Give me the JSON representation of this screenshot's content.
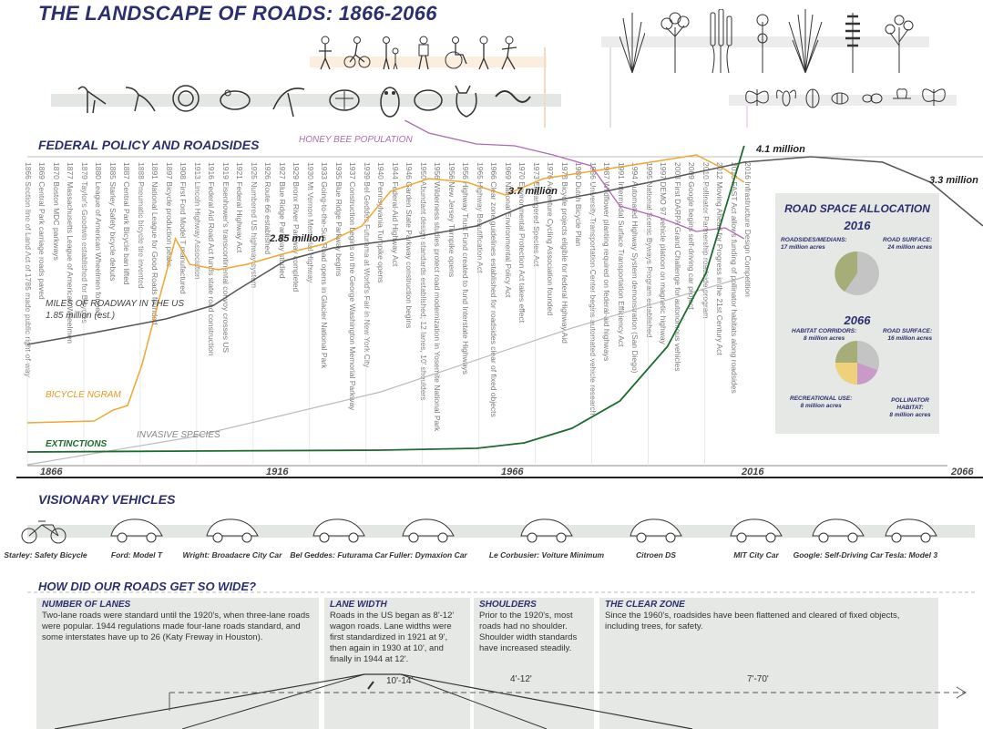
{
  "title": "THE LANDSCAPE OF ROADS: 1866-2066",
  "sections": {
    "federal_policy": "FEDERAL POLICY AND ROADSIDES",
    "visionary_vehicles": "VISIONARY VEHICLES",
    "roads_wide": "HOW DID OUR ROADS GET SO WIDE?"
  },
  "timeline": {
    "years": [
      "1866",
      "1916",
      "1966",
      "2016",
      "2066"
    ],
    "series": {
      "roadway": {
        "name": "MILES OF ROADWAY IN THE US",
        "color": "#555555"
      },
      "bicycle": {
        "name": "BICYCLE NGRAM",
        "color": "#f0a830"
      },
      "bees": {
        "name": "HONEY BEE POPULATION",
        "color": "#b06ab5"
      },
      "invasive": {
        "name": "INVASIVE SPECIES",
        "color": "#bbbbbb"
      },
      "extinctions": {
        "name": "EXTINCTIONS",
        "color": "#1e6b2e"
      }
    },
    "annotations": {
      "r1": "1.85 million (est.)",
      "r2": "2.85 million",
      "r3": "3.7 million",
      "r4": "4.1 million",
      "r5": "3.3 million"
    }
  },
  "policies": [
    "1866 Section line of Land Act of 1785 made public right-of-way",
    "1869 Central Park carriage roads paved",
    "1870 Boston MDC parkways",
    "1877 Massachusetts League of American Wheelmen",
    "1879 Taylor's Goodwin established for Bicycles",
    "1880 League of American Wheelmen formed",
    "1885 Starley Safety bicycle debuts",
    "1887 Central Park Bicycle ban lifted",
    "1888 Pneumatic bicycle tire invented",
    "1891 National League for Good Roads founded",
    "1897 Bicycle production peaks",
    "1908 First Ford Model T manufactured",
    "1913 Lincoln Highway Association",
    "1916 Federal Aid Road Act funds state road construction",
    "1919 Eisenhower's transcontinental convoy crosses US",
    "1921 Federal Highway Act",
    "1925 Numbered US highway system",
    "1926 Route 66 established",
    "1927 Blue Ridge Parkway studied",
    "1929 Bronx River Parkway completed",
    "1930 Mt Vernon Memorial Highway",
    "1933 Going-to-the-Sun Road opens in Glacier National Park",
    "1935 Blue Ridge Parkway begins",
    "1937 Construction begins on the George Washington Memorial Parkway",
    "1939 Bel Geddes Futurama at World's Fair in New York City",
    "1940 Pennsylvania Turnpike opens",
    "1944 Federal-Aid Highway Act",
    "1946 Garden State Parkway construction begins",
    "1950 Abundant design standards established; 12 lanes, 10' shoulders",
    "1956 Wilderness studies protect road modernization in Yosemite National Park",
    "1956 New Jersey Turnpike opens",
    "1956 Highway Trust Fund created to fund Interstate Highways",
    "1965 Highway Beautification Act",
    "1966 Clear zone guidelines established for roadsides clear of fixed objects",
    "1969 National Environmental Policy Act",
    "1970 Environmental Protection Act takes effect",
    "1973 Endangered Species Act",
    "1976 Adventure Cycling Association founded",
    "1978 Bicycle projects eligible for federal Highway Aid",
    "1980 Dutch Bicycle Plan",
    "1986 University Transportation Center begins automated vehicle research",
    "1987 Wildflower planting required on federal-aid highways",
    "1991 Intermodal Surface Transportation Efficiency Act",
    "1994 Automated Highway System demonstration (San Diego)",
    "1995 National Scenic Byways Program established",
    "1997 DEMO 97 vehicle platoon on magnetic highway",
    "2003 First DARPA Grand Challenge for autonomous vehicles",
    "2009 Google begins self-driving car project",
    "2010 Pollinator Partnership roadside program",
    "2012 Moving Ahead for Progress in the 21st Century Act",
    "2015 FAST Act allows funding of pollinator habitats along roadsides",
    "2016 Infrastructure Design Competition"
  ],
  "allocation": {
    "title": "ROAD SPACE ALLOCATION",
    "y2016": {
      "year": "2016",
      "labels": {
        "a": "ROADSIDES/MEDIANS:",
        "a2": "17 million acres",
        "b": "ROAD SURFACE:",
        "b2": "24 million acres"
      }
    },
    "y2066": {
      "year": "2066",
      "labels": {
        "a": "HABITAT CORRIDORS:",
        "a2": "8 million acres",
        "b": "ROAD SURFACE:",
        "b2": "16 million acres",
        "c": "RECREATIONAL USE:",
        "c2": "8 million acres",
        "d": "POLLINATOR HABITAT:",
        "d2": "8 million acres"
      }
    },
    "colors": {
      "roadside": "#a6ad79",
      "surface": "#c4c4c4",
      "rec": "#efd17b",
      "pollinator": "#c99ac9"
    }
  },
  "vehicles": [
    "Starley: Safety Bicycle",
    "Ford: Model T",
    "Wright: Broadacre City Car",
    "Bel Geddes: Futurama Car",
    "Fuller: Dymaxion Car",
    "Le Corbusier: Voiture Minimum",
    "Citroen DS",
    "MIT City Car",
    "Google: Self-Driving Car",
    "Tesla: Model 3"
  ],
  "roads": {
    "lanes": {
      "title": "NUMBER OF LANES",
      "text": "Two-lane roads were standard until the 1920's, when three-lane roads were popular. 1944 regulations made four-lane roads standard, and some interstates have up to 26 (Katy Freway in Houston)."
    },
    "width": {
      "title": "LANE WIDTH",
      "text": "Roads in the US began as 8'-12' wagon roads. Lane widths were first standardized in 1921 at 9', then again in 1930 at 10', and finally in 1944 at 12'.",
      "dim": "10'-14'"
    },
    "shoulders": {
      "title": "SHOULDERS",
      "text": "Prior to the 1920's, most roads had no shoulder. Shoulder width standards have increased steadily.",
      "dim": "4'-12'"
    },
    "clear": {
      "title": "THE CLEAR ZONE",
      "text": "Since the 1960's, roadsides have been flattened and cleared of fixed objects, including trees, for safety.",
      "dim": "7'-70'"
    }
  }
}
